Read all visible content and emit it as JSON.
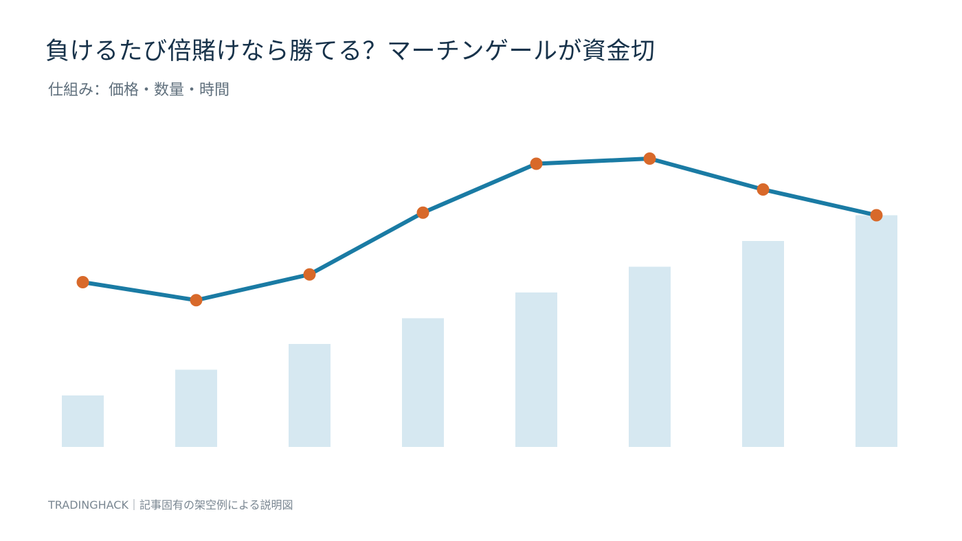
{
  "header": {
    "title": "負けるたび倍賭けなら勝てる？マーチンゲールが資金切",
    "subtitle": "仕組み：価格・数量・時間"
  },
  "footer": {
    "credit": "TRADINGHACK｜記事固有の架空例による説明図"
  },
  "colors": {
    "bar": "#d6e8f1",
    "line": "#1a7ba4",
    "marker": "#d8692a"
  },
  "chart_data": {
    "type": "bar",
    "categories": [
      "",
      "",
      "",
      "",
      "",
      "",
      "",
      ""
    ],
    "series": [
      {
        "type": "bar",
        "values": [
          20,
          30,
          40,
          50,
          60,
          70,
          80,
          90
        ]
      },
      {
        "type": "line",
        "values": [
          64,
          57,
          67,
          91,
          110,
          112,
          100,
          90
        ]
      }
    ],
    "ylim": [
      0,
      120
    ],
    "grid": false,
    "legend": "none"
  }
}
